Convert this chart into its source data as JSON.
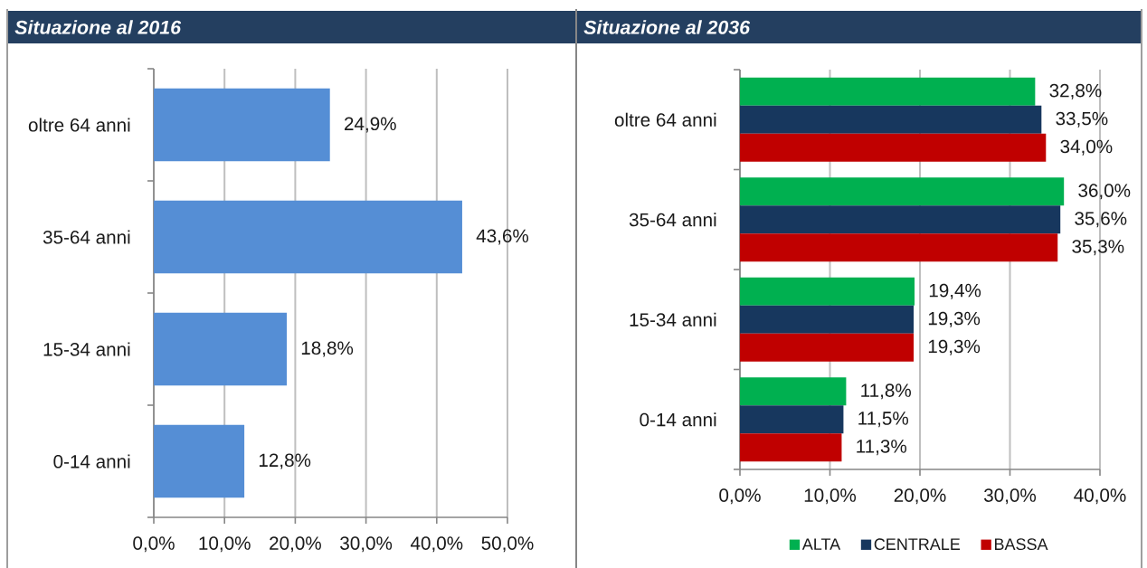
{
  "chart_data": [
    {
      "type": "bar",
      "orientation": "horizontal",
      "title": "Situazione al 2016",
      "categories": [
        "oltre 64 anni",
        "35-64 anni",
        "15-34 anni",
        "0-14 anni"
      ],
      "values": [
        24.9,
        43.6,
        18.8,
        12.8
      ],
      "value_labels": [
        "24,9%",
        "43,6%",
        "18,8%",
        "12,8%"
      ],
      "color": "#558ed5",
      "xlim": [
        0,
        50
      ],
      "xticks": [
        {
          "value": 0,
          "label": "0,0%"
        },
        {
          "value": 10,
          "label": "10,0%"
        },
        {
          "value": 20,
          "label": "20,0%"
        },
        {
          "value": 30,
          "label": "30,0%"
        },
        {
          "value": 40,
          "label": "40,0%"
        },
        {
          "value": 50,
          "label": "50,0%"
        }
      ],
      "grid": "x"
    },
    {
      "type": "bar",
      "orientation": "horizontal",
      "title": "Situazione al 2036",
      "categories": [
        "oltre 64 anni",
        "35-64 anni",
        "15-34 anni",
        "0-14 anni"
      ],
      "series": [
        {
          "name": "ALTA",
          "color": "#00b050",
          "values": [
            32.8,
            36.0,
            19.4,
            11.8
          ],
          "value_labels": [
            "32,8%",
            "36,0%",
            "19,4%",
            "11,8%"
          ]
        },
        {
          "name": "CENTRALE",
          "color": "#17375e",
          "values": [
            33.5,
            35.6,
            19.3,
            11.5
          ],
          "value_labels": [
            "33,5%",
            "35,6%",
            "19,3%",
            "11,5%"
          ]
        },
        {
          "name": "BASSA",
          "color": "#c00000",
          "values": [
            34.0,
            35.3,
            19.3,
            11.3
          ],
          "value_labels": [
            "34,0%",
            "35,3%",
            "19,3%",
            "11,3%"
          ]
        }
      ],
      "xlim": [
        0,
        40
      ],
      "xticks": [
        {
          "value": 0,
          "label": "0,0%"
        },
        {
          "value": 10,
          "label": "10,0%"
        },
        {
          "value": 20,
          "label": "20,0%"
        },
        {
          "value": 30,
          "label": "30,0%"
        },
        {
          "value": 40,
          "label": "40,0%"
        }
      ],
      "grid": "x",
      "legend": "bottom"
    }
  ]
}
